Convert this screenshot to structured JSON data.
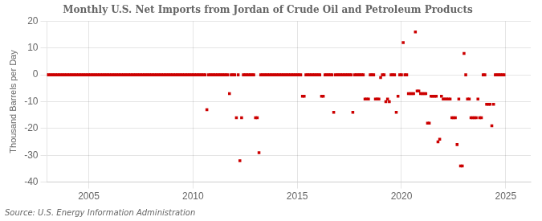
{
  "chart_data": {
    "type": "scatter",
    "title": "Monthly U.S. Net Imports from Jordan of Crude Oil and Petroleum Products",
    "ylabel": "Thousand Barrels per Day",
    "annotation": "Source: U.S. Energy Information Administration",
    "color": "#cc0000",
    "marker": "square",
    "grid": true,
    "xlim": [
      2003.0,
      2026.2
    ],
    "xticks": [
      2005,
      2010,
      2015,
      2020,
      2025
    ],
    "ylim": [
      -40,
      20
    ],
    "yticks": [
      -40,
      -30,
      -20,
      -10,
      0,
      10,
      20
    ],
    "x": [
      2003.0,
      2003.083,
      2003.167,
      2003.25,
      2003.333,
      2003.417,
      2003.5,
      2003.583,
      2003.667,
      2003.75,
      2003.833,
      2003.917,
      2004.0,
      2004.083,
      2004.167,
      2004.25,
      2004.333,
      2004.417,
      2004.5,
      2004.583,
      2004.667,
      2004.75,
      2004.833,
      2004.917,
      2005.0,
      2005.083,
      2005.167,
      2005.25,
      2005.333,
      2005.417,
      2005.5,
      2005.583,
      2005.667,
      2005.75,
      2005.833,
      2005.917,
      2006.0,
      2006.083,
      2006.167,
      2006.25,
      2006.333,
      2006.417,
      2006.5,
      2006.583,
      2006.667,
      2006.75,
      2006.833,
      2006.917,
      2007.0,
      2007.083,
      2007.167,
      2007.25,
      2007.333,
      2007.417,
      2007.5,
      2007.583,
      2007.667,
      2007.75,
      2007.833,
      2007.917,
      2008.0,
      2008.083,
      2008.167,
      2008.25,
      2008.333,
      2008.417,
      2008.5,
      2008.583,
      2008.667,
      2008.75,
      2008.833,
      2008.917,
      2009.0,
      2009.083,
      2009.167,
      2009.25,
      2009.333,
      2009.417,
      2009.5,
      2009.583,
      2009.667,
      2009.75,
      2009.833,
      2009.917,
      2010.0,
      2010.083,
      2010.167,
      2010.25,
      2010.333,
      2010.417,
      2010.5,
      2010.583,
      2010.667,
      2010.75,
      2010.833,
      2010.917,
      2011.0,
      2011.083,
      2011.167,
      2011.25,
      2011.333,
      2011.417,
      2011.5,
      2011.583,
      2011.667,
      2011.75,
      2011.833,
      2011.917,
      2012.0,
      2012.083,
      2012.167,
      2012.25,
      2012.333,
      2012.417,
      2012.5,
      2012.583,
      2012.667,
      2012.75,
      2012.833,
      2012.917,
      2013.0,
      2013.083,
      2013.167,
      2013.25,
      2013.333,
      2013.417,
      2013.5,
      2013.583,
      2013.667,
      2013.75,
      2013.833,
      2013.917,
      2014.0,
      2014.083,
      2014.167,
      2014.25,
      2014.333,
      2014.417,
      2014.5,
      2014.583,
      2014.667,
      2014.75,
      2014.833,
      2014.917,
      2015.0,
      2015.083,
      2015.167,
      2015.25,
      2015.333,
      2015.417,
      2015.5,
      2015.583,
      2015.667,
      2015.75,
      2015.833,
      2015.917,
      2016.0,
      2016.083,
      2016.167,
      2016.25,
      2016.333,
      2016.417,
      2016.5,
      2016.583,
      2016.667,
      2016.75,
      2016.833,
      2016.917,
      2017.0,
      2017.083,
      2017.167,
      2017.25,
      2017.333,
      2017.417,
      2017.5,
      2017.583,
      2017.667,
      2017.75,
      2017.833,
      2017.917,
      2018.0,
      2018.083,
      2018.167,
      2018.25,
      2018.333,
      2018.417,
      2018.5,
      2018.583,
      2018.667,
      2018.75,
      2018.833,
      2018.917,
      2019.0,
      2019.083,
      2019.167,
      2019.25,
      2019.333,
      2019.417,
      2019.5,
      2019.583,
      2019.667,
      2019.75,
      2019.833,
      2019.917,
      2020.0,
      2020.083,
      2020.167,
      2020.25,
      2020.333,
      2020.417,
      2020.5,
      2020.583,
      2020.667,
      2020.75,
      2020.833,
      2020.917,
      2021.0,
      2021.083,
      2021.167,
      2021.25,
      2021.333,
      2021.417,
      2021.5,
      2021.583,
      2021.667,
      2021.75,
      2021.833,
      2021.917,
      2022.0,
      2022.083,
      2022.167,
      2022.25,
      2022.333,
      2022.417,
      2022.5,
      2022.583,
      2022.667,
      2022.75,
      2022.833,
      2022.917,
      2023.0,
      2023.083,
      2023.167,
      2023.25,
      2023.333,
      2023.417,
      2023.5,
      2023.583,
      2023.667,
      2023.75,
      2023.833,
      2023.917,
      2024.0,
      2024.083,
      2024.167,
      2024.25,
      2024.333,
      2024.417,
      2024.5,
      2024.583,
      2024.667,
      2024.75,
      2024.833,
      2024.917
    ],
    "values": [
      0,
      0,
      0,
      0,
      0,
      0,
      0,
      0,
      0,
      0,
      0,
      0,
      0,
      0,
      0,
      0,
      0,
      0,
      0,
      0,
      0,
      0,
      0,
      0,
      0,
      0,
      0,
      0,
      0,
      0,
      0,
      0,
      0,
      0,
      0,
      0,
      0,
      0,
      0,
      0,
      0,
      0,
      0,
      0,
      0,
      0,
      0,
      0,
      0,
      0,
      0,
      0,
      0,
      0,
      0,
      0,
      0,
      0,
      0,
      0,
      0,
      0,
      0,
      0,
      0,
      0,
      0,
      0,
      0,
      0,
      0,
      0,
      0,
      0,
      0,
      0,
      0,
      0,
      0,
      0,
      0,
      0,
      0,
      0,
      0,
      0,
      0,
      0,
      0,
      0,
      0,
      0,
      -13,
      0,
      0,
      0,
      0,
      0,
      0,
      0,
      0,
      0,
      0,
      0,
      0,
      -7,
      0,
      0,
      0,
      -16,
      0,
      -32,
      -16,
      0,
      0,
      0,
      0,
      0,
      0,
      0,
      -16,
      -16,
      -29,
      0,
      0,
      0,
      0,
      0,
      0,
      0,
      0,
      0,
      0,
      0,
      0,
      0,
      0,
      0,
      0,
      0,
      0,
      0,
      0,
      0,
      0,
      0,
      0,
      -8,
      -8,
      0,
      0,
      0,
      0,
      0,
      0,
      0,
      0,
      0,
      -8,
      -8,
      0,
      0,
      0,
      0,
      0,
      -14,
      0,
      0,
      0,
      0,
      0,
      0,
      0,
      0,
      0,
      0,
      -14,
      0,
      0,
      0,
      0,
      0,
      0,
      -9,
      -9,
      -9,
      0,
      0,
      0,
      -9,
      -9,
      -9,
      -1,
      0,
      0,
      -10,
      -9,
      -10,
      0,
      0,
      0,
      -14,
      -8,
      0,
      0,
      12,
      0,
      0,
      -7,
      -7,
      -7,
      -7,
      16,
      -6,
      -6,
      -7,
      -7,
      -7,
      -7,
      -18,
      -18,
      -8,
      -8,
      -8,
      -8,
      -25,
      -24,
      -8,
      -9,
      -9,
      -9,
      -9,
      -9,
      -16,
      -16,
      -16,
      -26,
      -9,
      -34,
      -34,
      8,
      0,
      -9,
      -9,
      -16,
      -16,
      -16,
      -16,
      -9,
      -16,
      -16,
      0,
      0,
      -11,
      -11,
      -11,
      -19,
      -11,
      0,
      0,
      0,
      0,
      0,
      0
    ]
  }
}
